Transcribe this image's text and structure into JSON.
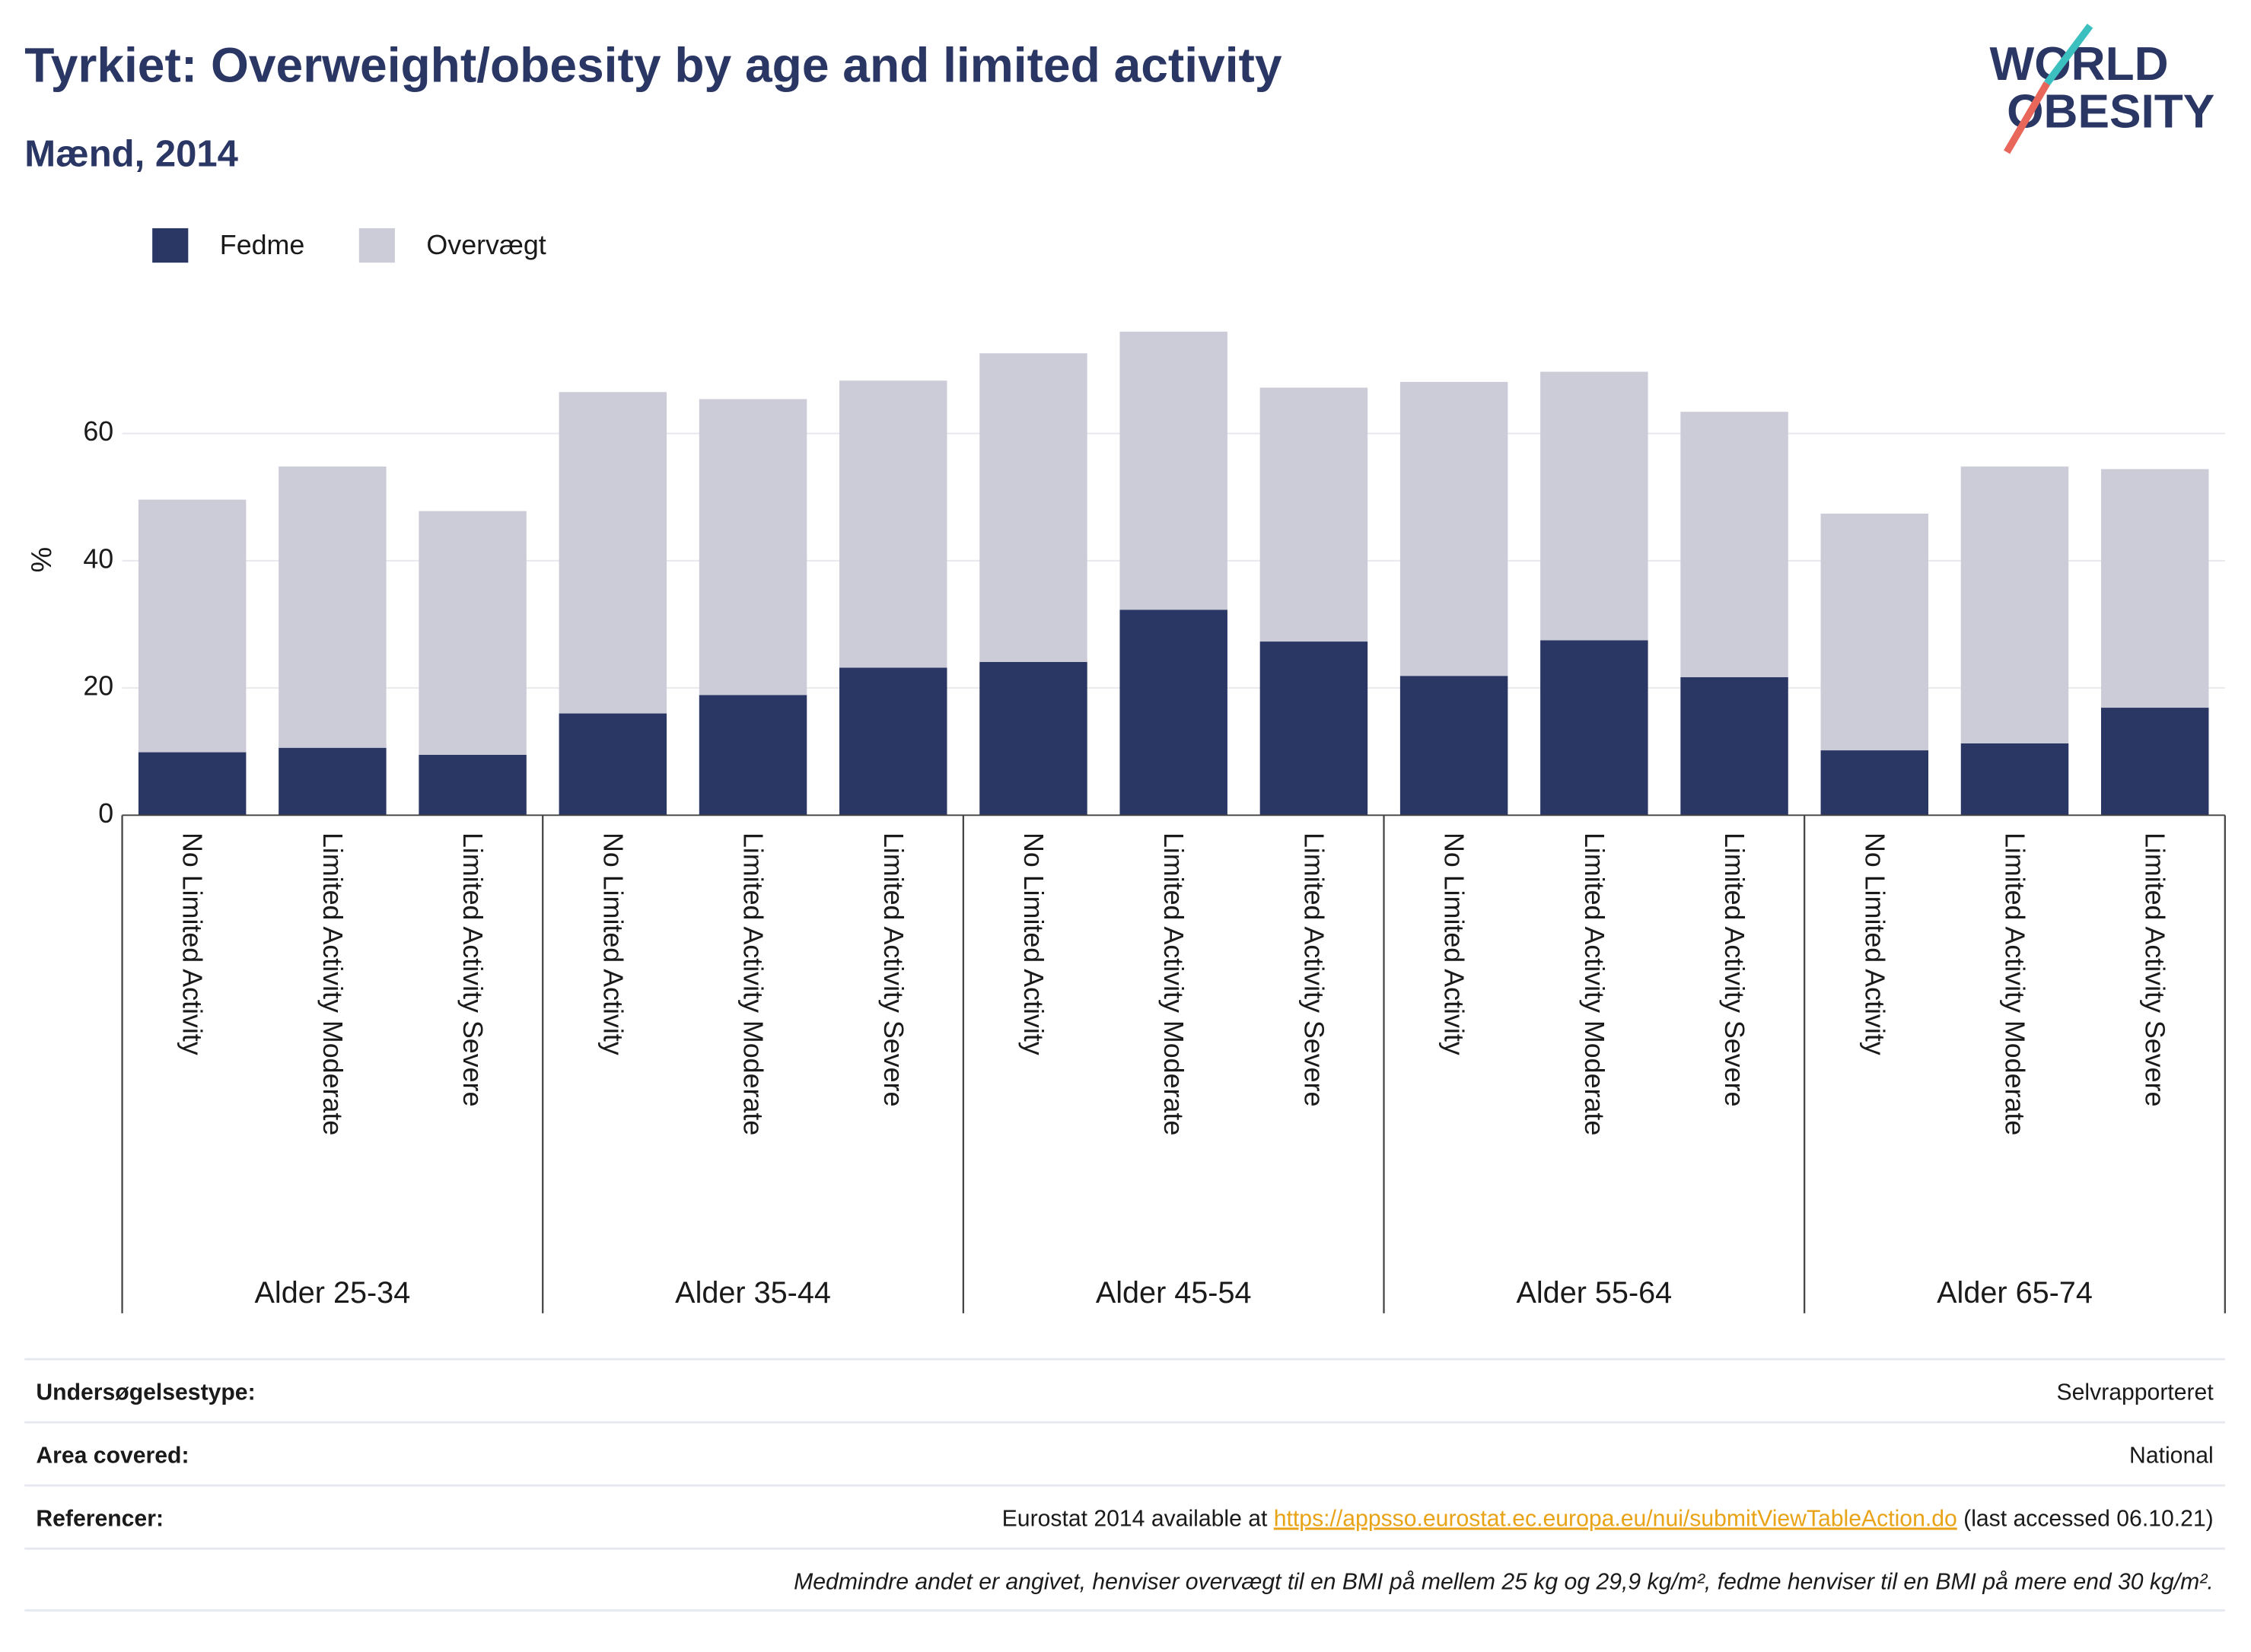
{
  "chart_data": {
    "type": "stacked_bar",
    "title": "Tyrkiet: Overweight/obesity by age and limited activity",
    "subtitle": "Mænd, 2014",
    "y_label": "%",
    "categories": [
      "No Limited Activity",
      "Limited Activity Moderate",
      "Limited Activity Severe",
      "No Limited Activity",
      "Limited Activity Moderate",
      "Limited Activity Severe",
      "No Limited Activity",
      "Limited Activity Moderate",
      "Limited Activity Severe",
      "No Limited Activity",
      "Limited Activity Moderate",
      "Limited Activity Severe",
      "No Limited Activity",
      "Limited Activity Moderate",
      "Limited Activity Severe"
    ],
    "groups": [
      "Alder 25-34",
      "Alder 35-44",
      "Alder 45-54",
      "Alder 55-64",
      "Alder 65-74"
    ],
    "series": [
      {
        "name": "Fedme",
        "color": "#2a3663",
        "values": [
          9.9,
          10.6,
          9.5,
          16.0,
          18.9,
          23.2,
          24.1,
          32.3,
          27.3,
          21.9,
          27.5,
          21.7,
          10.2,
          11.3,
          16.9
        ]
      },
      {
        "name": "Overvægt",
        "color": "#cbccd8",
        "values": [
          39.7,
          44.2,
          38.3,
          50.5,
          46.5,
          45.1,
          48.5,
          43.7,
          39.9,
          46.2,
          42.2,
          41.7,
          37.2,
          43.5,
          37.5
        ]
      }
    ],
    "ylim": [
      0,
      80
    ],
    "yticks": [
      0,
      20,
      40,
      60
    ],
    "grid": true,
    "legend": "top-left"
  },
  "logo": [
    "WORLD",
    "OBESITY"
  ],
  "footer": {
    "rows": [
      {
        "label": "Undersøgelsestype:",
        "value": [
          "Selvrapporteret"
        ]
      },
      {
        "label": "Area covered:",
        "value": [
          "National"
        ]
      },
      {
        "label": "Referencer:",
        "value": [
          "Eurostat 2014 available at ",
          "https://appsso.eurostat.ec.europa.eu/nui/submitViewTableAction.do",
          " (last accessed 06.10.21)"
        ]
      }
    ],
    "note": "Medmindre andet er angivet, henviser overvægt til en BMI på mellem 25 kg og 29,9 kg/m², fedme henviser til en BMI på mere end 30 kg/m²."
  }
}
